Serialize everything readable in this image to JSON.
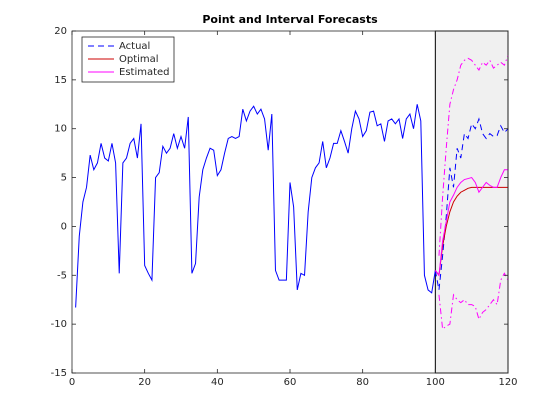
{
  "chart_data": {
    "type": "line",
    "title": "Point and Interval Forecasts",
    "xlim": [
      0,
      120
    ],
    "xticks": [
      0,
      20,
      40,
      60,
      80,
      100,
      120
    ],
    "ylim": [
      -15,
      20
    ],
    "yticks": [
      -15,
      -10,
      -5,
      0,
      5,
      10,
      15,
      20
    ],
    "grid": false,
    "legend": "northwest",
    "shaded_region": {
      "x": [
        100,
        120
      ],
      "color": "#f0f0f0"
    },
    "series": [
      {
        "color": "#0000ff",
        "dash": "solid",
        "x": [
          1,
          2,
          3,
          4,
          5,
          6,
          7,
          8,
          9,
          10,
          11,
          12,
          13,
          14,
          15,
          16,
          17,
          18,
          19,
          20,
          21,
          22,
          23,
          24,
          25,
          26,
          27,
          28,
          29,
          30,
          31,
          32,
          33,
          34,
          35,
          36,
          37,
          38,
          39,
          40,
          41,
          42,
          43,
          44,
          45,
          46,
          47,
          48,
          49,
          50,
          51,
          52,
          53,
          54,
          55,
          56,
          57,
          58,
          59,
          60,
          61,
          62,
          63,
          64,
          65,
          66,
          67,
          68,
          69,
          70,
          71,
          72,
          73,
          74,
          75,
          76,
          77,
          78,
          79,
          80,
          81,
          82,
          83,
          84,
          85,
          86,
          87,
          88,
          89,
          90,
          91,
          92,
          93,
          94,
          95,
          96,
          97,
          98,
          99,
          100
        ],
        "values": [
          -8.3,
          -1,
          2.5,
          4,
          7.3,
          5.8,
          6.5,
          8.5,
          7,
          6.7,
          8.5,
          6.5,
          -4.8,
          6.5,
          7,
          8.5,
          9,
          7,
          10.5,
          -4,
          -4.8,
          -5.5,
          5,
          5.5,
          8.2,
          7.5,
          8,
          9.5,
          8,
          9.2,
          8,
          11.2,
          -4.8,
          -3.8,
          3,
          5.8,
          7,
          8,
          7.8,
          5.2,
          5.8,
          7.5,
          9,
          9.2,
          9,
          9.2,
          12,
          10.8,
          11.8,
          12.3,
          11.5,
          12,
          11,
          7.8,
          11.5,
          -4.5,
          -5.5,
          -5.5,
          -5.5,
          4.5,
          2,
          -6.5,
          -4.8,
          -5,
          1.5,
          5,
          6,
          6.5,
          8.7,
          6,
          7,
          8.5,
          8.5,
          9.8,
          8.7,
          7.5,
          10,
          11.8,
          11,
          9.2,
          9.8,
          11.7,
          11.8,
          10.3,
          10.5,
          8.7,
          10.8,
          11,
          10.5,
          11,
          9,
          11,
          11.5,
          10,
          12.5,
          10.8,
          -5,
          -6.5,
          -6.8,
          -4.5
        ]
      },
      {
        "name": "Actual",
        "color": "#0000ff",
        "dash": "dashed",
        "x": [
          100,
          101,
          102,
          103,
          104,
          105,
          106,
          107,
          108,
          109,
          110,
          111,
          112,
          113,
          114,
          115,
          116,
          117,
          118,
          119,
          120
        ],
        "values": [
          -4.5,
          -6.5,
          -3,
          1,
          6,
          4,
          8,
          7,
          9.5,
          9,
          10.5,
          10,
          11,
          9.5,
          9,
          9.5,
          9.2,
          9.3,
          10.3,
          9.6,
          10
        ]
      },
      {
        "name": "Optimal",
        "color": "#cc0000",
        "dash": "solid",
        "x": [
          100,
          101,
          102,
          103,
          104,
          105,
          106,
          107,
          108,
          109,
          110,
          111,
          112,
          113,
          114,
          115,
          116,
          117,
          118,
          119,
          120
        ],
        "values": [
          -4.5,
          -5,
          -2,
          0,
          1.5,
          2.5,
          3.1,
          3.5,
          3.7,
          3.9,
          4,
          4,
          4,
          4,
          4,
          4,
          4,
          4,
          4,
          4,
          4
        ]
      },
      {
        "name": "Estimated",
        "color": "#ff00ff",
        "dash": "solid",
        "x": [
          100,
          101,
          102,
          103,
          104,
          105,
          106,
          107,
          108,
          109,
          110,
          111,
          112,
          113,
          114,
          115,
          116,
          117,
          118,
          119,
          120
        ],
        "values": [
          -4.5,
          -5,
          -1.5,
          0.5,
          2.5,
          3.2,
          4,
          4.5,
          4.8,
          4.9,
          5,
          4.5,
          3.5,
          4,
          4.5,
          4.2,
          4,
          4,
          5,
          5.8,
          5.8
        ]
      },
      {
        "color": "#ff00ff",
        "dash": "dashdot",
        "x": [
          101,
          102,
          103,
          104,
          105,
          106,
          107,
          108,
          109,
          110,
          111,
          112,
          113,
          114,
          115,
          116,
          117,
          118,
          119,
          120
        ],
        "values": [
          -3,
          3,
          8,
          12.5,
          14,
          15,
          16.5,
          17,
          17.2,
          17,
          16.5,
          16,
          16.8,
          16.5,
          17,
          16.2,
          16.5,
          16.8,
          16.5,
          17.5
        ]
      },
      {
        "color": "#ff00ff",
        "dash": "dashdot",
        "x": [
          101,
          102,
          103,
          104,
          105,
          106,
          107,
          108,
          109,
          110,
          111,
          112,
          113,
          114,
          115,
          116,
          117,
          118,
          119,
          120
        ],
        "values": [
          -7,
          -10.5,
          -10.2,
          -10,
          -7,
          -7.5,
          -7.8,
          -7.5,
          -8,
          -8,
          -8.2,
          -9.5,
          -8.8,
          -8.5,
          -8,
          -7.5,
          -8,
          -5.5,
          -4.8,
          -5.5
        ]
      }
    ]
  }
}
